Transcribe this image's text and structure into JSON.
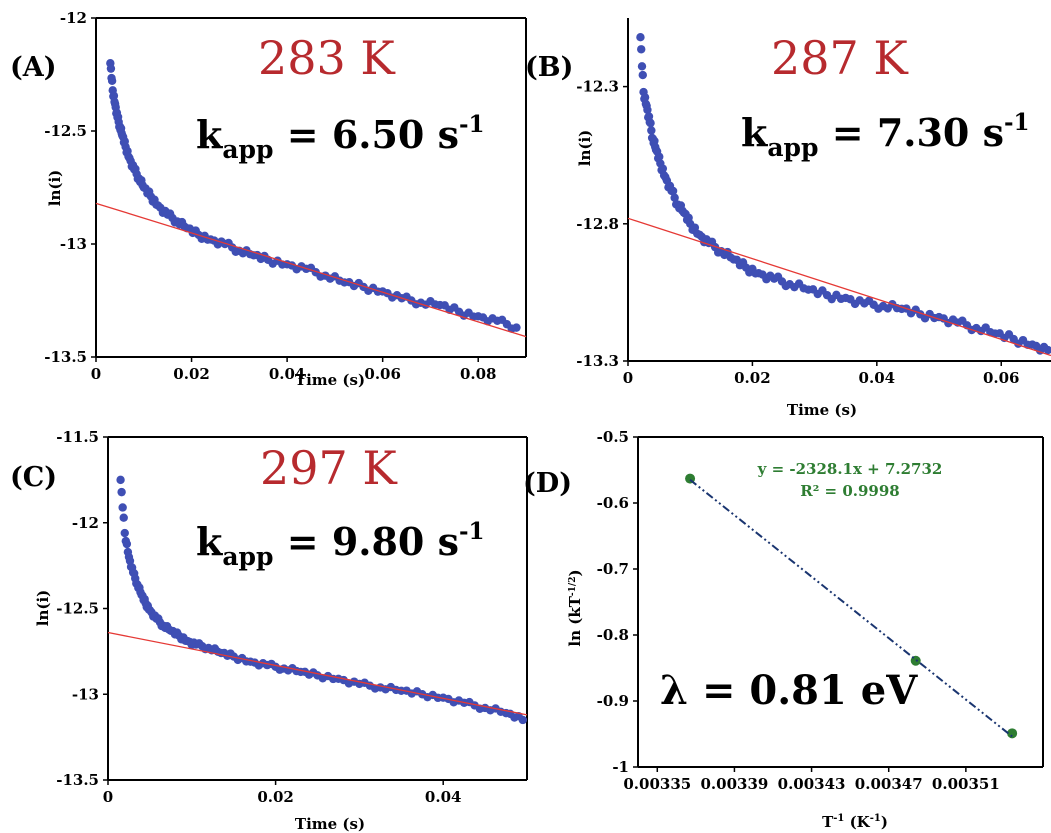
{
  "chart_data": [
    {
      "panel": "(A)",
      "type": "scatter",
      "temperature_label": "283 K",
      "kapp": {
        "symbol": "k",
        "subscript": "app",
        "value_text": " = 6.50 s",
        "unit_sup": "-1"
      },
      "xlabel": "Time (s)",
      "ylabel": "ln(i)",
      "xlim": [
        0,
        0.09
      ],
      "ylim": [
        -13.5,
        -12
      ],
      "xticks": [
        0,
        0.02,
        0.04,
        0.06,
        0.08
      ],
      "xtick_labels": [
        "0",
        "0.02",
        "0.04",
        "0.06",
        "0.08"
      ],
      "yticks": [
        -12,
        -12.5,
        -13,
        -13.5
      ],
      "ytick_labels": [
        "-12",
        "-12.5",
        "-13",
        "-13.5"
      ],
      "series": [
        {
          "kind": "scatter",
          "color": "#3f4fb4",
          "x": [
            0.003,
            0.0035,
            0.004,
            0.0045,
            0.005,
            0.0055,
            0.0062,
            0.007,
            0.008,
            0.009,
            0.01,
            0.0115,
            0.013,
            0.015,
            0.017,
            0.019,
            0.0215,
            0.024,
            0.027,
            0.03,
            0.033,
            0.036,
            0.04,
            0.044,
            0.048,
            0.052,
            0.056,
            0.06,
            0.064,
            0.068,
            0.072,
            0.076,
            0.08,
            0.084,
            0.088
          ],
          "y": [
            -12.2,
            -12.32,
            -12.38,
            -12.44,
            -12.48,
            -12.52,
            -12.57,
            -12.62,
            -12.67,
            -12.71,
            -12.75,
            -12.79,
            -12.83,
            -12.87,
            -12.9,
            -12.93,
            -12.96,
            -12.98,
            -13.0,
            -13.03,
            -13.05,
            -13.07,
            -13.09,
            -13.11,
            -13.14,
            -13.17,
            -13.19,
            -13.21,
            -13.24,
            -13.26,
            -13.27,
            -13.3,
            -13.32,
            -13.34,
            -13.37
          ]
        },
        {
          "kind": "line",
          "color": "#e53935",
          "x": [
            0,
            0.09
          ],
          "y": [
            -12.82,
            -13.41
          ]
        }
      ]
    },
    {
      "panel": "(B)",
      "type": "scatter",
      "temperature_label": "287 K",
      "kapp": {
        "symbol": "k",
        "subscript": "app",
        "value_text": " = 7.30 s",
        "unit_sup": "-1"
      },
      "xlabel": "Time (s)",
      "ylabel": "ln(i)",
      "xlim": [
        0,
        0.068
      ],
      "ylim": [
        -13.3,
        -12.05
      ],
      "xticks": [
        0,
        0.02,
        0.04,
        0.06
      ],
      "xtick_labels": [
        "0",
        "0.02",
        "0.04",
        "0.06"
      ],
      "yticks": [
        -12.3,
        -12.8,
        -13.3
      ],
      "ytick_labels": [
        "-12.3",
        "-12.8",
        "-13.3"
      ],
      "series": [
        {
          "kind": "scatter",
          "color": "#3f4fb4",
          "x": [
            0.002,
            0.0025,
            0.003,
            0.0035,
            0.004,
            0.0045,
            0.0052,
            0.006,
            0.007,
            0.008,
            0.009,
            0.01,
            0.0115,
            0.013,
            0.015,
            0.017,
            0.019,
            0.021,
            0.0235,
            0.026,
            0.029,
            0.032,
            0.035,
            0.038,
            0.041,
            0.044,
            0.047,
            0.05,
            0.053,
            0.056,
            0.059,
            0.062,
            0.065,
            0.0675
          ],
          "y": [
            -12.12,
            -12.32,
            -12.37,
            -12.43,
            -12.49,
            -12.53,
            -12.58,
            -12.63,
            -12.68,
            -12.73,
            -12.76,
            -12.8,
            -12.84,
            -12.87,
            -12.9,
            -12.93,
            -12.96,
            -12.98,
            -13.0,
            -13.02,
            -13.04,
            -13.06,
            -13.07,
            -13.09,
            -13.1,
            -13.11,
            -13.13,
            -13.14,
            -13.16,
            -13.18,
            -13.2,
            -13.22,
            -13.24,
            -13.26
          ]
        },
        {
          "kind": "line",
          "color": "#e53935",
          "x": [
            0,
            0.068
          ],
          "y": [
            -12.78,
            -13.28
          ]
        }
      ]
    },
    {
      "panel": "(C)",
      "type": "scatter",
      "temperature_label": "297 K",
      "kapp": {
        "symbol": "k",
        "subscript": "app",
        "value_text": " = 9.80 s",
        "unit_sup": "-1"
      },
      "xlabel": "Time (s)",
      "ylabel": "ln(i)",
      "xlim": [
        0,
        0.05
      ],
      "ylim": [
        -13.5,
        -11.5
      ],
      "xticks": [
        0,
        0.02,
        0.04
      ],
      "xtick_labels": [
        "0",
        "0.02",
        "0.04"
      ],
      "yticks": [
        -11.5,
        -12,
        -12.5,
        -13,
        -13.5
      ],
      "ytick_labels": [
        "-11.5",
        "-12",
        "-12.5",
        "-13",
        "-13.5"
      ],
      "series": [
        {
          "kind": "scatter",
          "color": "#3f4fb4",
          "x": [
            0.0015,
            0.002,
            0.0025,
            0.003,
            0.0035,
            0.004,
            0.0045,
            0.005,
            0.0058,
            0.0066,
            0.0075,
            0.0085,
            0.0095,
            0.0105,
            0.012,
            0.0135,
            0.015,
            0.017,
            0.019,
            0.021,
            0.023,
            0.025,
            0.0275,
            0.03,
            0.0325,
            0.035,
            0.0375,
            0.04,
            0.0425,
            0.045,
            0.0475,
            0.0495
          ],
          "y": [
            -11.75,
            -12.06,
            -12.2,
            -12.29,
            -12.36,
            -12.42,
            -12.47,
            -12.51,
            -12.56,
            -12.6,
            -12.63,
            -12.66,
            -12.69,
            -12.71,
            -12.73,
            -12.76,
            -12.78,
            -12.81,
            -12.83,
            -12.85,
            -12.87,
            -12.89,
            -12.91,
            -12.94,
            -12.96,
            -12.98,
            -13.0,
            -13.02,
            -13.05,
            -13.08,
            -13.11,
            -13.15
          ]
        },
        {
          "kind": "line",
          "color": "#e53935",
          "x": [
            0,
            0.05
          ],
          "y": [
            -12.64,
            -13.12
          ]
        }
      ]
    },
    {
      "panel": "(D)",
      "type": "scatter",
      "xlabel_main": "T",
      "xlabel_sup": "-1",
      "xlabel_rest": " (K",
      "xlabel_sup2": "-1",
      "xlabel_end": ")",
      "ylabel_main": "ln (kT",
      "ylabel_sup": "-1/2",
      "ylabel_end": ")",
      "xlim": [
        0.00334,
        0.00355
      ],
      "ylim": [
        -1,
        -0.5
      ],
      "xticks": [
        0.00335,
        0.00339,
        0.00343,
        0.00347,
        0.00351
      ],
      "xtick_labels": [
        "0.00335",
        "0.00339",
        "0.00343",
        "0.00347",
        "0.00351"
      ],
      "yticks": [
        -0.5,
        -0.6,
        -0.7,
        -0.8,
        -0.9,
        -1
      ],
      "ytick_labels": [
        "-0.5",
        "-0.6",
        "-0.7",
        "-0.8",
        "-0.9",
        "-1"
      ],
      "equation": "y = -2328.1x + 7.2732",
      "r2": "R² = 0.9998",
      "lambda_label": "λ = 0.81 eV",
      "series": [
        {
          "kind": "scatter",
          "color": "#2e7d32",
          "x": [
            0.003367,
            0.003484,
            0.003534
          ],
          "y": [
            -0.563,
            -0.839,
            -0.949
          ]
        },
        {
          "kind": "trend",
          "color": "#1a3570",
          "x": [
            0.003367,
            0.003534
          ],
          "y": [
            -0.5649,
            -0.9537
          ]
        }
      ]
    }
  ]
}
